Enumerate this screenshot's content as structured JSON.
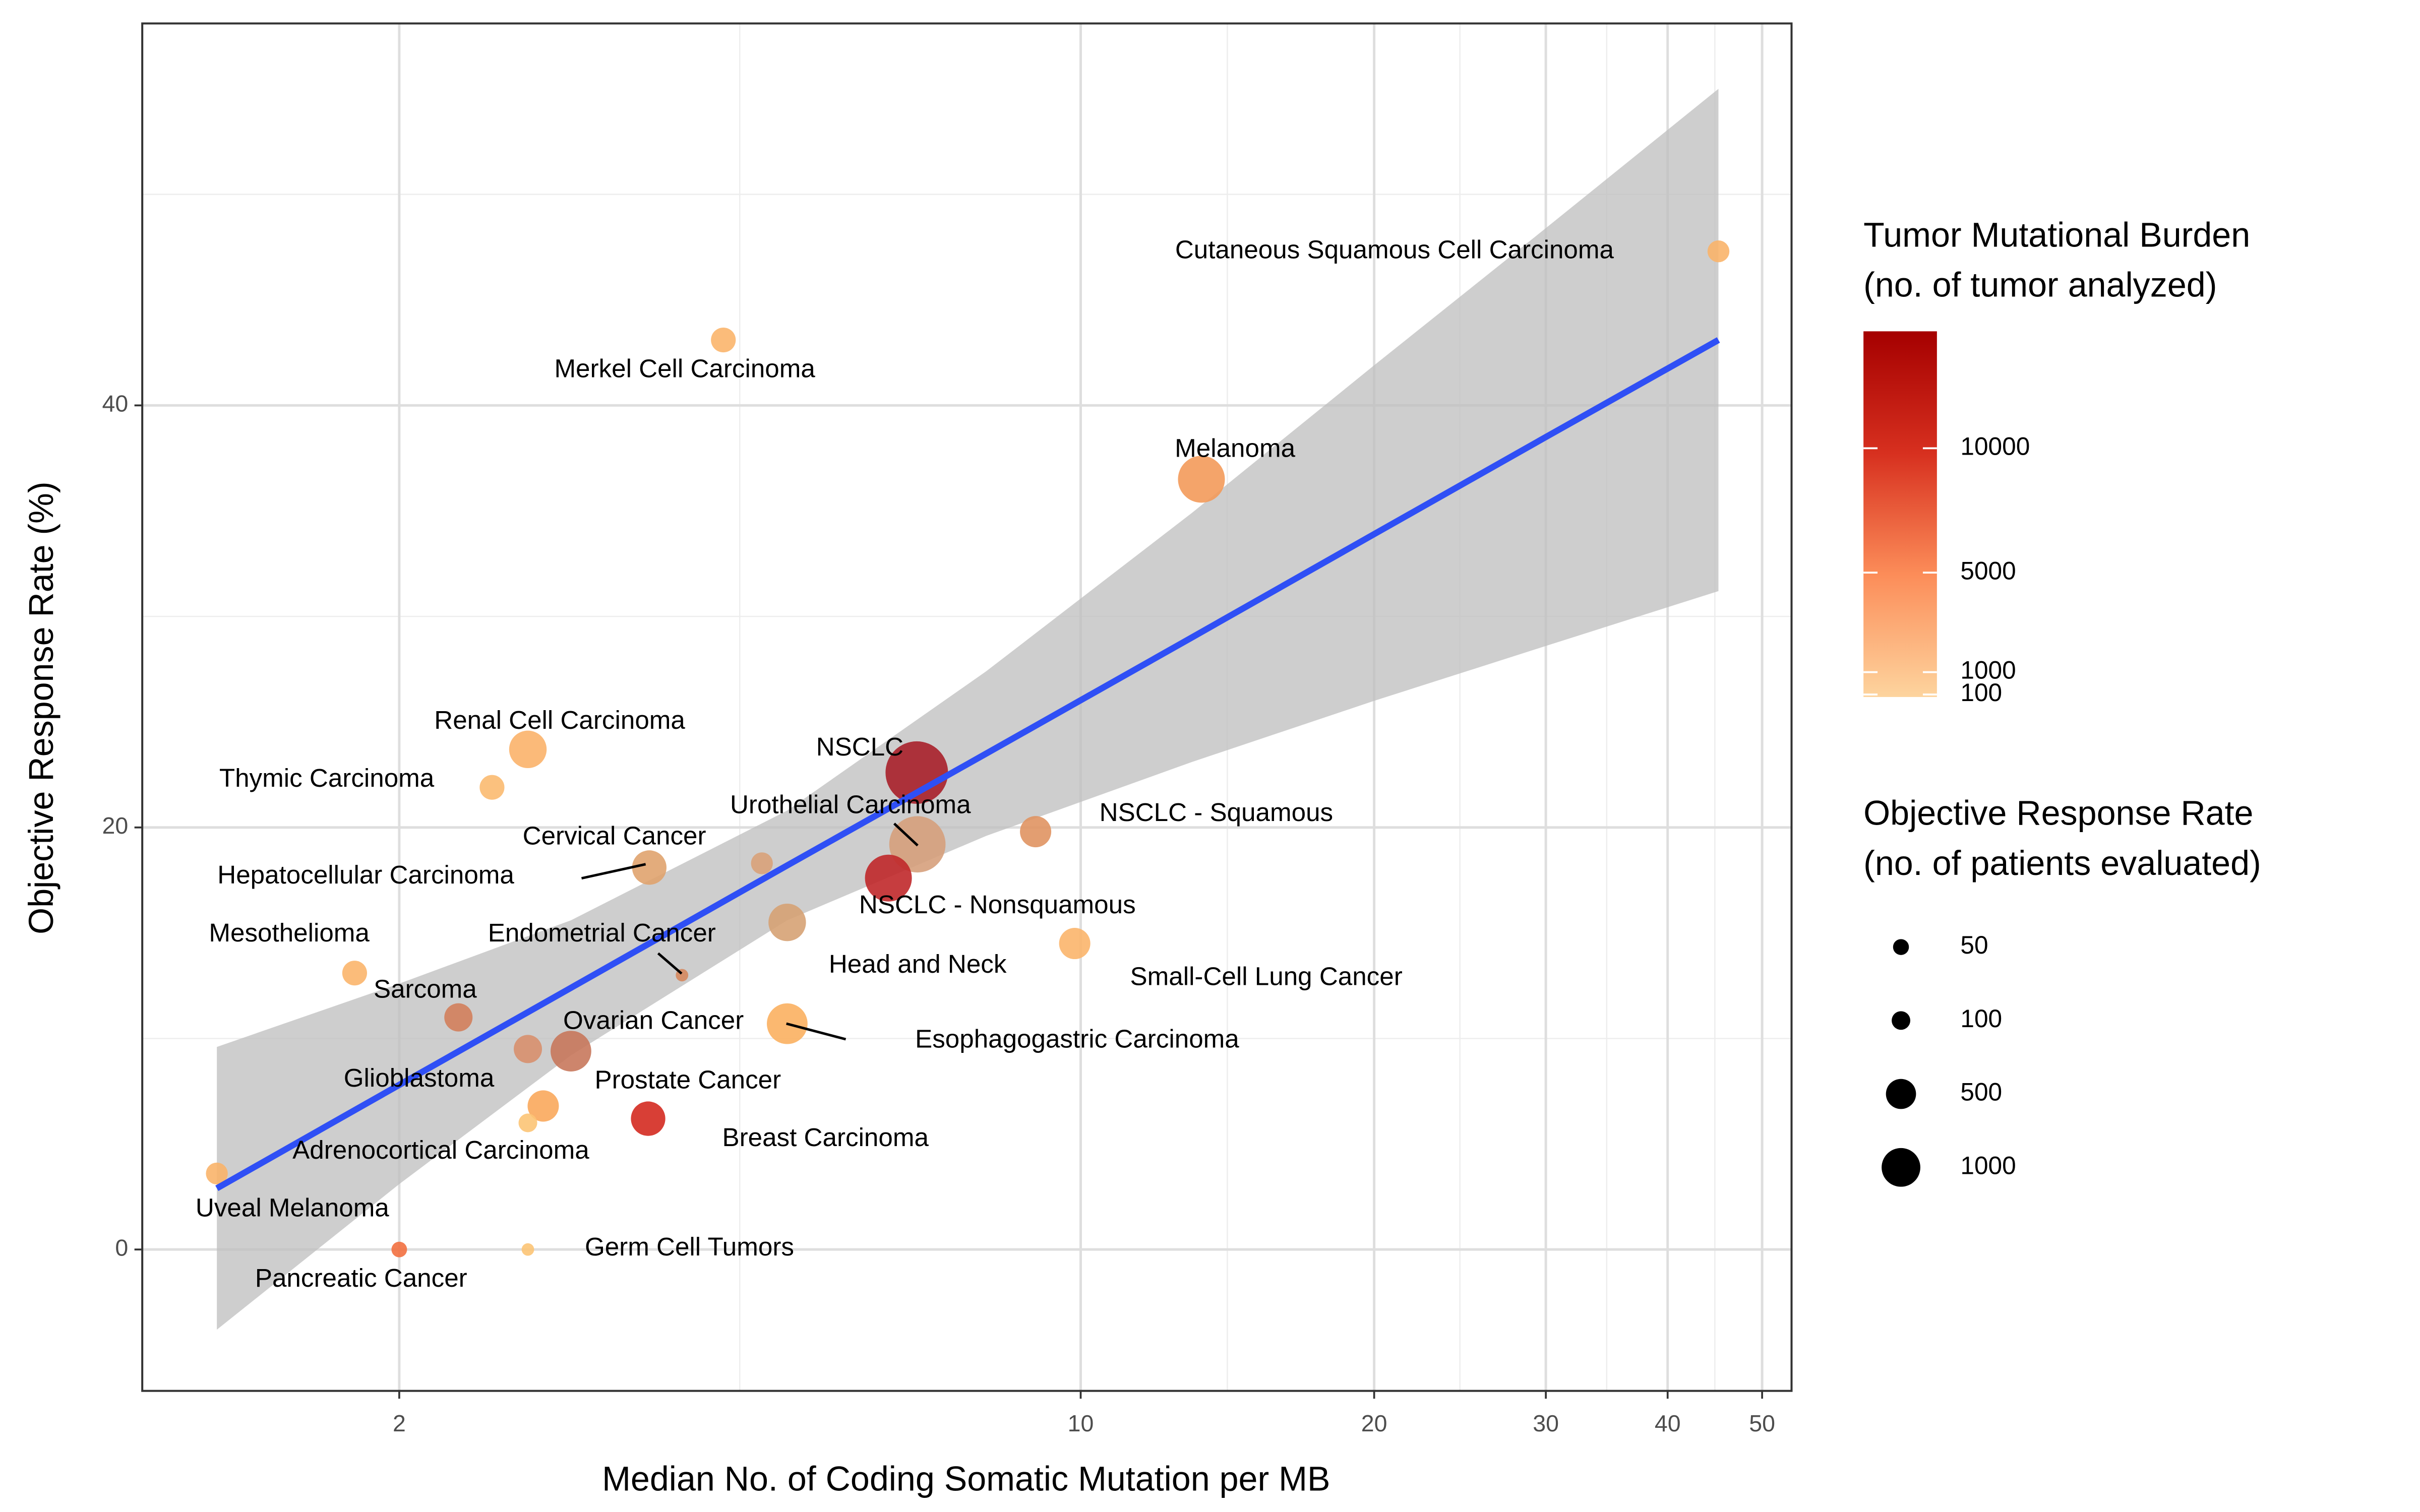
{
  "chart_data": {
    "type": "scatter",
    "xlabel": "Median No. of Coding Somatic Mutation per MB",
    "ylabel": "Objective Response Rate (%)",
    "log_x": true,
    "grid": true,
    "xlim": [
      1.09,
      53.6
    ],
    "ylim": [
      -6.7,
      58.1
    ],
    "xticks": [
      2,
      10,
      20,
      30,
      40,
      50
    ],
    "yticks": [
      0,
      20,
      40
    ],
    "xminor": [
      4.47,
      14.14,
      24.49,
      34.64,
      44.72
    ],
    "yminor": [
      10,
      30,
      50
    ],
    "labels": [
      "Cutaneous Squamous Cell Carcinoma",
      "Merkel Cell Carcinoma",
      "Melanoma",
      "Renal Cell Carcinoma",
      "Thymic Carcinoma",
      "NSCLC",
      "Urothelial Carcinoma",
      "NSCLC - Squamous",
      "Hepatocellular Carcinoma",
      "Cervical Cancer",
      "Head and Neck",
      "NSCLC - Nonsquamous",
      "Small-Cell Lung Cancer",
      "Mesothelioma",
      "Endometrial Cancer",
      "Sarcoma",
      "Glioblastoma",
      "Ovarian Cancer",
      "Esophagogastric Carcinoma",
      "Prostate Cancer",
      "Adrenocortical Carcinoma",
      "Breast Carcinoma",
      "Uveal Melanoma",
      "Pancreatic Cancer",
      "Germ Cell Tumors"
    ],
    "x": [
      45.1,
      4.3,
      13.3,
      2.71,
      2.49,
      6.79,
      6.8,
      8.99,
      3.61,
      4.71,
      6.35,
      5.0,
      9.86,
      1.8,
      3.9,
      2.3,
      2.71,
      3.0,
      5.0,
      2.81,
      2.71,
      3.6,
      1.3,
      2.0,
      2.71
    ],
    "y": [
      47.3,
      43.1,
      36.5,
      23.7,
      21.9,
      22.6,
      19.2,
      19.8,
      18.1,
      18.3,
      17.6,
      15.5,
      14.5,
      13.1,
      13.0,
      11.0,
      9.5,
      9.4,
      10.7,
      6.8,
      6.0,
      6.2,
      3.6,
      0,
      0
    ],
    "sizes": [
      100,
      160,
      1080,
      590,
      160,
      2220,
      1720,
      345,
      460,
      100,
      1080,
      590,
      345,
      160,
      2,
      250,
      250,
      740,
      740,
      345,
      50,
      460,
      100,
      18,
      2
    ],
    "colors": [
      "#f9b46a",
      "#fbb56b",
      "#f39a5a",
      "#fbb36a",
      "#fbba70",
      "#a8202a",
      "#d6a07c",
      "#e09462",
      "#e0a36e",
      "#d9a27a",
      "#c0282a",
      "#d6a274",
      "#fbb56b",
      "#fbb56b",
      "#d6885e",
      "#d3805c",
      "#d8906e",
      "#c8785c",
      "#fbb060",
      "#f9a85c",
      "#fcc476",
      "#d42a20",
      "#f9b46a",
      "#f27040",
      "#fcc476"
    ],
    "trend": {
      "color": "#2f4ff5",
      "band_color": "#bdbdbd",
      "x": [
        1.3,
        2,
        3,
        5,
        8,
        13,
        20,
        30,
        45.1
      ],
      "y": [
        2.9,
        7.8,
        12.4,
        18.2,
        23.5,
        29.0,
        33.9,
        38.5,
        43.1
      ],
      "lower": [
        -3.8,
        3.1,
        9.2,
        15.6,
        19.6,
        23.1,
        26.0,
        28.6,
        31.2
      ],
      "upper": [
        9.6,
        12.6,
        15.6,
        20.8,
        27.4,
        34.9,
        41.9,
        48.4,
        55.0
      ]
    },
    "color_legend": {
      "title": [
        "Tumor Mutational Burden",
        "(no. of tumor analyzed)"
      ],
      "lim": [
        0,
        14700
      ],
      "ticks": [
        100,
        1000,
        5000,
        10000
      ],
      "colors": [
        "#fdd49e",
        "#fc8d59",
        "#d7301f",
        "#a50000"
      ]
    },
    "size_legend": {
      "title": [
        "Objective Response Rate",
        "(no. of patients evaluated)"
      ],
      "values": [
        50,
        100,
        500,
        1000
      ]
    }
  }
}
